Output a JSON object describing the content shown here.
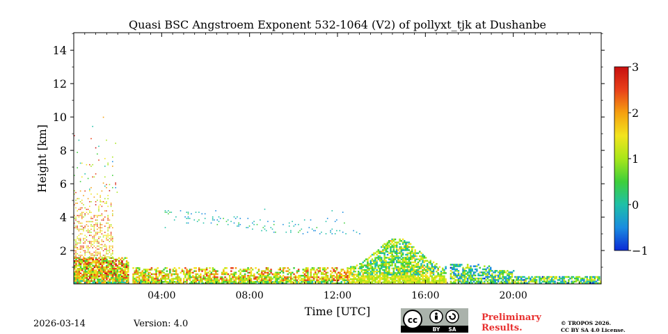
{
  "chart_data": {
    "type": "heatmap",
    "title": "Quasi BSC Angstroem Exponent 532-1064 (V2) of pollyxt_tjk at Dushanbe",
    "xlabel": "Time [UTC]",
    "ylabel": "Height [km]",
    "xlim_hours": [
      0,
      24
    ],
    "ylim_km": [
      0,
      15
    ],
    "x_ticks": [
      {
        "hour": 4,
        "label": "04:00"
      },
      {
        "hour": 8,
        "label": "08:00"
      },
      {
        "hour": 12,
        "label": "12:00"
      },
      {
        "hour": 16,
        "label": "16:00"
      },
      {
        "hour": 20,
        "label": "20:00"
      }
    ],
    "y_ticks": [
      {
        "km": 2,
        "label": "2"
      },
      {
        "km": 4,
        "label": "4"
      },
      {
        "km": 6,
        "label": "6"
      },
      {
        "km": 8,
        "label": "8"
      },
      {
        "km": 10,
        "label": "10"
      },
      {
        "km": 12,
        "label": "12"
      },
      {
        "km": 14,
        "label": "14"
      }
    ],
    "colorbar": {
      "range": [
        -1,
        3
      ],
      "ticks": [
        {
          "value": 3,
          "label": "3"
        },
        {
          "value": 2,
          "label": "2"
        },
        {
          "value": 1,
          "label": "1"
        },
        {
          "value": 0,
          "label": "0"
        },
        {
          "value": -1,
          "label": "−1"
        }
      ],
      "colormap": [
        "#0a2ad6",
        "#1a8ce0",
        "#1fc0a8",
        "#3ecf3a",
        "#a8e61a",
        "#f2e41e",
        "#f5a010",
        "#e8401a",
        "#c80f0f"
      ]
    },
    "gaps_hours": [
      [
        2.55,
        2.65
      ],
      [
        16.9,
        17.05
      ]
    ],
    "regions": [
      {
        "name": "boundary-layer-morning",
        "t": [
          0,
          2.5
        ],
        "h": [
          0,
          1.6
        ],
        "value_range": [
          0.4,
          3.0
        ]
      },
      {
        "name": "elevated-aerosol-night",
        "t": [
          0,
          1.8
        ],
        "h": [
          1.5,
          5.6
        ],
        "value_range": [
          0.8,
          2.8
        ]
      },
      {
        "name": "scattered-noise-high",
        "t": [
          0,
          2.0
        ],
        "h": [
          5.5,
          10.2
        ],
        "value_range": [
          -0.5,
          3.0
        ]
      },
      {
        "name": "boundary-layer-day",
        "t": [
          2.6,
          12.5
        ],
        "h": [
          0,
          1.0
        ],
        "value_range": [
          0.6,
          2.6
        ]
      },
      {
        "name": "cirrus-layer",
        "t": [
          4.0,
          13.0
        ],
        "h": [
          3.0,
          4.6
        ],
        "value_range": [
          -0.5,
          0.4
        ]
      },
      {
        "name": "convective-layer",
        "t": [
          12.5,
          16.9
        ],
        "h": [
          0,
          2.9
        ],
        "value_range": [
          -0.3,
          1.8
        ]
      },
      {
        "name": "evening-layer",
        "t": [
          17.05,
          24.0
        ],
        "h": [
          0,
          1.2
        ],
        "value_range": [
          -0.8,
          1.5
        ]
      }
    ]
  },
  "footer": {
    "date": "2026-03-14",
    "version": "Version: 4.0",
    "preliminary_line1": "Preliminary",
    "preliminary_line2": "Results.",
    "copyright_line1": "© TROPOS 2026.",
    "copyright_line2": "CC BY SA 4.0 License.",
    "license_badge": {
      "left": "BY",
      "right": "SA"
    }
  }
}
